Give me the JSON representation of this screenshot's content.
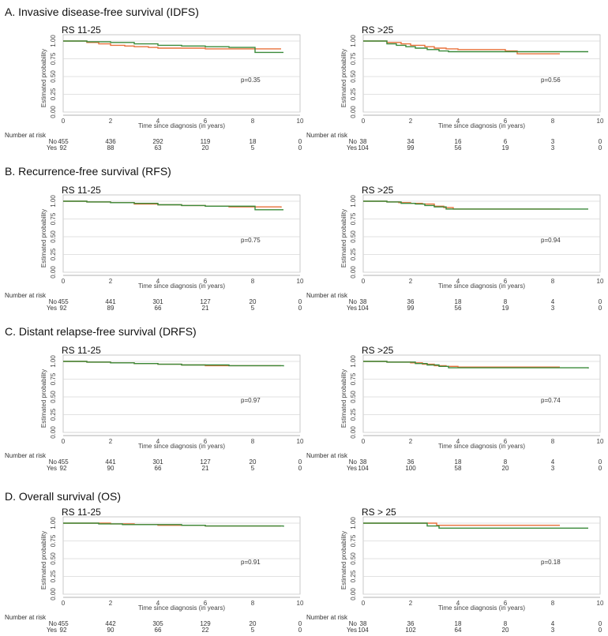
{
  "chart_data": [
    {
      "type": "line",
      "section": "A. Invasive disease-free survival (IDFS)",
      "title": "RS 11-25",
      "xlabel": "Time since diagnosis (in years)",
      "ylabel": "Estimated probability",
      "xlim": [
        0,
        10
      ],
      "ylim": [
        0,
        1
      ],
      "xticks": [
        "0",
        "2",
        "4",
        "6",
        "8",
        "10"
      ],
      "yticks": [
        "0.00",
        "0.25",
        "0.50",
        "0.75",
        "1.00"
      ],
      "p_value": "p=0.35",
      "series": [
        {
          "color": "#e8703a",
          "x": [
            0,
            1,
            1.5,
            2,
            2.6,
            3,
            3.6,
            4,
            5,
            6,
            7,
            8,
            9.2
          ],
          "y": [
            1,
            0.98,
            0.96,
            0.94,
            0.93,
            0.92,
            0.91,
            0.9,
            0.9,
            0.89,
            0.89,
            0.89,
            0.89
          ]
        },
        {
          "color": "#3a8a3a",
          "x": [
            0,
            1,
            2,
            3,
            4,
            5,
            6,
            7,
            8,
            8.1,
            9.3
          ],
          "y": [
            1,
            0.99,
            0.98,
            0.96,
            0.94,
            0.93,
            0.92,
            0.91,
            0.91,
            0.84,
            0.84
          ]
        }
      ],
      "risk_table": {
        "header": "Number at risk",
        "rows": [
          {
            "label": "No",
            "values": [
              "455",
              "436",
              "292",
              "119",
              "18",
              "0"
            ]
          },
          {
            "label": "Yes",
            "values": [
              "92",
              "88",
              "63",
              "20",
              "5",
              "0"
            ]
          }
        ]
      }
    },
    {
      "type": "line",
      "title": "RS >25",
      "xlabel": "Time since diagnosis (in years)",
      "ylabel": "Estimated probability",
      "xlim": [
        0,
        10
      ],
      "ylim": [
        0,
        1
      ],
      "xticks": [
        "0",
        "2",
        "4",
        "6",
        "8",
        "10"
      ],
      "yticks": [
        "0.00",
        "0.25",
        "0.50",
        "0.75",
        "1.00"
      ],
      "p_value": "p=0.56",
      "series": [
        {
          "color": "#e8703a",
          "x": [
            0,
            1,
            1.6,
            2,
            2.6,
            3,
            3.5,
            4,
            5,
            6,
            6.5,
            7,
            8,
            8.3
          ],
          "y": [
            1,
            0.98,
            0.96,
            0.94,
            0.92,
            0.9,
            0.89,
            0.88,
            0.88,
            0.86,
            0.82,
            0.82,
            0.82,
            0.82
          ]
        },
        {
          "color": "#3a8a3a",
          "x": [
            0,
            1,
            1.4,
            1.8,
            2.2,
            2.7,
            3.2,
            3.6,
            4,
            5,
            6,
            6.5,
            8,
            9.5
          ],
          "y": [
            1,
            0.96,
            0.94,
            0.92,
            0.9,
            0.88,
            0.86,
            0.85,
            0.85,
            0.85,
            0.85,
            0.85,
            0.85,
            0.85
          ]
        }
      ],
      "risk_table": {
        "header": "Number at risk",
        "rows": [
          {
            "label": "No",
            "values": [
              "38",
              "34",
              "16",
              "6",
              "3",
              "0"
            ]
          },
          {
            "label": "Yes",
            "values": [
              "104",
              "99",
              "56",
              "19",
              "3",
              "0"
            ]
          }
        ]
      }
    },
    {
      "type": "line",
      "section": "B. Recurrence-free survival (RFS)",
      "title": "RS 11-25",
      "xlabel": "Time since diagnosis (in years)",
      "ylabel": "Estimated probability",
      "xlim": [
        0,
        10
      ],
      "ylim": [
        0,
        1
      ],
      "xticks": [
        "0",
        "2",
        "4",
        "6",
        "8",
        "10"
      ],
      "yticks": [
        "0.00",
        "0.25",
        "0.50",
        "0.75",
        "1.00"
      ],
      "p_value": "p=0.75",
      "series": [
        {
          "color": "#e8703a",
          "x": [
            0,
            1,
            2,
            3,
            4,
            5,
            6,
            7,
            8,
            9.2
          ],
          "y": [
            1,
            0.99,
            0.98,
            0.96,
            0.95,
            0.94,
            0.93,
            0.92,
            0.92,
            0.91
          ]
        },
        {
          "color": "#3a8a3a",
          "x": [
            0,
            1,
            2,
            3,
            4,
            5,
            6,
            7,
            8,
            8.1,
            9.3
          ],
          "y": [
            1,
            0.99,
            0.98,
            0.97,
            0.95,
            0.94,
            0.93,
            0.93,
            0.93,
            0.88,
            0.88
          ]
        }
      ],
      "risk_table": {
        "header": "Number at risk",
        "rows": [
          {
            "label": "No",
            "values": [
              "455",
              "441",
              "301",
              "127",
              "20",
              "0"
            ]
          },
          {
            "label": "Yes",
            "values": [
              "92",
              "89",
              "66",
              "21",
              "5",
              "0"
            ]
          }
        ]
      }
    },
    {
      "type": "line",
      "title": "RS >25",
      "xlabel": "Time since diagnosis (in years)",
      "ylabel": "Estimated probability",
      "xlim": [
        0,
        10
      ],
      "ylim": [
        0,
        1
      ],
      "xticks": [
        "0",
        "2",
        "4",
        "6",
        "8",
        "10"
      ],
      "yticks": [
        "0.00",
        "0.25",
        "0.50",
        "0.75",
        "1.00"
      ],
      "p_value": "p=0.94",
      "series": [
        {
          "color": "#e8703a",
          "x": [
            0,
            1,
            1.5,
            2,
            2.5,
            3,
            3.4,
            3.8,
            4,
            5,
            6,
            7,
            8,
            8.3
          ],
          "y": [
            1,
            0.99,
            0.98,
            0.97,
            0.96,
            0.93,
            0.91,
            0.89,
            0.89,
            0.89,
            0.89,
            0.89,
            0.89,
            0.89
          ]
        },
        {
          "color": "#3a8a3a",
          "x": [
            0,
            1,
            1.6,
            2.2,
            2.6,
            3,
            3.5,
            4,
            5,
            6,
            7,
            8,
            9.5
          ],
          "y": [
            1,
            0.99,
            0.97,
            0.96,
            0.94,
            0.92,
            0.89,
            0.89,
            0.89,
            0.89,
            0.89,
            0.89,
            0.89
          ]
        }
      ],
      "risk_table": {
        "header": "Number at risk",
        "rows": [
          {
            "label": "No",
            "values": [
              "38",
              "36",
              "18",
              "8",
              "4",
              "0"
            ]
          },
          {
            "label": "Yes",
            "values": [
              "104",
              "99",
              "56",
              "19",
              "3",
              "0"
            ]
          }
        ]
      }
    },
    {
      "type": "line",
      "section": "C. Distant relapse-free survival (DRFS)",
      "title": "RS 11-25",
      "xlabel": "Time since diagnosis (in years)",
      "ylabel": "Estimated probability",
      "xlim": [
        0,
        10
      ],
      "ylim": [
        0,
        1
      ],
      "xticks": [
        "0",
        "2",
        "4",
        "6",
        "8",
        "10"
      ],
      "yticks": [
        "0.00",
        "0.25",
        "0.50",
        "0.75",
        "1.00"
      ],
      "p_value": "p=0.97",
      "series": [
        {
          "color": "#e8703a",
          "x": [
            0,
            1,
            2,
            3,
            4,
            5,
            6,
            7,
            8,
            9.2
          ],
          "y": [
            1,
            0.99,
            0.98,
            0.97,
            0.96,
            0.95,
            0.94,
            0.94,
            0.94,
            0.94
          ]
        },
        {
          "color": "#3a8a3a",
          "x": [
            0,
            1,
            2,
            3,
            4,
            5,
            6,
            7,
            8,
            9.3
          ],
          "y": [
            1,
            0.99,
            0.98,
            0.97,
            0.96,
            0.95,
            0.95,
            0.94,
            0.94,
            0.93
          ]
        }
      ],
      "risk_table": {
        "header": "Number at risk",
        "rows": [
          {
            "label": "No",
            "values": [
              "455",
              "441",
              "301",
              "127",
              "20",
              "0"
            ]
          },
          {
            "label": "Yes",
            "values": [
              "92",
              "90",
              "66",
              "21",
              "5",
              "0"
            ]
          }
        ]
      }
    },
    {
      "type": "line",
      "title": "RS >25",
      "xlabel": "Time since diagnosis (in years)",
      "ylabel": "Estimated probability",
      "xlim": [
        0,
        10
      ],
      "ylim": [
        0,
        1
      ],
      "xticks": [
        "0",
        "2",
        "4",
        "6",
        "8",
        "10"
      ],
      "yticks": [
        "0.00",
        "0.25",
        "0.50",
        "0.75",
        "1.00"
      ],
      "p_value": "p=0.74",
      "series": [
        {
          "color": "#e8703a",
          "x": [
            0,
            1,
            2,
            2.5,
            3,
            3.5,
            4,
            5,
            6,
            7,
            8,
            8.3
          ],
          "y": [
            1,
            0.99,
            0.98,
            0.96,
            0.94,
            0.93,
            0.92,
            0.92,
            0.92,
            0.92,
            0.92,
            0.92
          ]
        },
        {
          "color": "#3a8a3a",
          "x": [
            0,
            1,
            2.2,
            2.7,
            3.2,
            3.6,
            4,
            5,
            6,
            7,
            8,
            9.5
          ],
          "y": [
            1,
            0.99,
            0.97,
            0.95,
            0.93,
            0.91,
            0.91,
            0.91,
            0.91,
            0.91,
            0.91,
            0.9
          ]
        }
      ],
      "risk_table": {
        "header": "Number at risk",
        "rows": [
          {
            "label": "No",
            "values": [
              "38",
              "36",
              "18",
              "8",
              "4",
              "0"
            ]
          },
          {
            "label": "Yes",
            "values": [
              "104",
              "100",
              "58",
              "20",
              "3",
              "0"
            ]
          }
        ]
      }
    },
    {
      "type": "line",
      "section": "D. Overall survival (OS)",
      "title": "RS 11-25",
      "xlabel": "Time since diagnosis (in years)",
      "ylabel": "Estimated probability",
      "xlim": [
        0,
        10
      ],
      "ylim": [
        0,
        1
      ],
      "xticks": [
        "0",
        "2",
        "4",
        "6",
        "8",
        "10"
      ],
      "yticks": [
        "0.00",
        "0.25",
        "0.50",
        "0.75",
        "1.00"
      ],
      "p_value": "p=0.91",
      "series": [
        {
          "color": "#e8703a",
          "x": [
            0,
            2,
            3,
            4,
            5,
            6,
            7,
            8,
            9.2
          ],
          "y": [
            1,
            0.99,
            0.98,
            0.97,
            0.97,
            0.96,
            0.96,
            0.96,
            0.96
          ]
        },
        {
          "color": "#3a8a3a",
          "x": [
            0,
            1.5,
            2.5,
            4,
            5,
            6,
            7,
            8,
            9.3
          ],
          "y": [
            1,
            0.99,
            0.98,
            0.98,
            0.97,
            0.96,
            0.96,
            0.96,
            0.95
          ]
        }
      ],
      "risk_table": {
        "header": "Number at risk",
        "rows": [
          {
            "label": "No",
            "values": [
              "455",
              "442",
              "305",
              "129",
              "20",
              "0"
            ]
          },
          {
            "label": "Yes",
            "values": [
              "92",
              "90",
              "66",
              "22",
              "5",
              "0"
            ]
          }
        ]
      }
    },
    {
      "type": "line",
      "title": "RS > 25",
      "xlabel": "Time since diagnosis (in years)",
      "ylabel": "Estimated probability",
      "xlim": [
        0,
        10
      ],
      "ylim": [
        0,
        1
      ],
      "xticks": [
        "0",
        "2",
        "4",
        "6",
        "8",
        "10"
      ],
      "yticks": [
        "0.00",
        "0.25",
        "0.50",
        "0.75",
        "1.00"
      ],
      "p_value": "p=0.18",
      "series": [
        {
          "color": "#e8703a",
          "x": [
            0,
            3,
            3.1,
            8,
            8.3
          ],
          "y": [
            1,
            1,
            0.97,
            0.97,
            0.97
          ]
        },
        {
          "color": "#3a8a3a",
          "x": [
            0,
            2.6,
            2.7,
            3.1,
            3.2,
            8,
            9.5
          ],
          "y": [
            1,
            1,
            0.96,
            0.96,
            0.93,
            0.93,
            0.93
          ]
        }
      ],
      "risk_table": {
        "header": "Number at risk",
        "rows": [
          {
            "label": "No",
            "values": [
              "38",
              "36",
              "18",
              "8",
              "4",
              "0"
            ]
          },
          {
            "label": "Yes",
            "values": [
              "104",
              "102",
              "64",
              "20",
              "3",
              "0"
            ]
          }
        ]
      }
    }
  ]
}
